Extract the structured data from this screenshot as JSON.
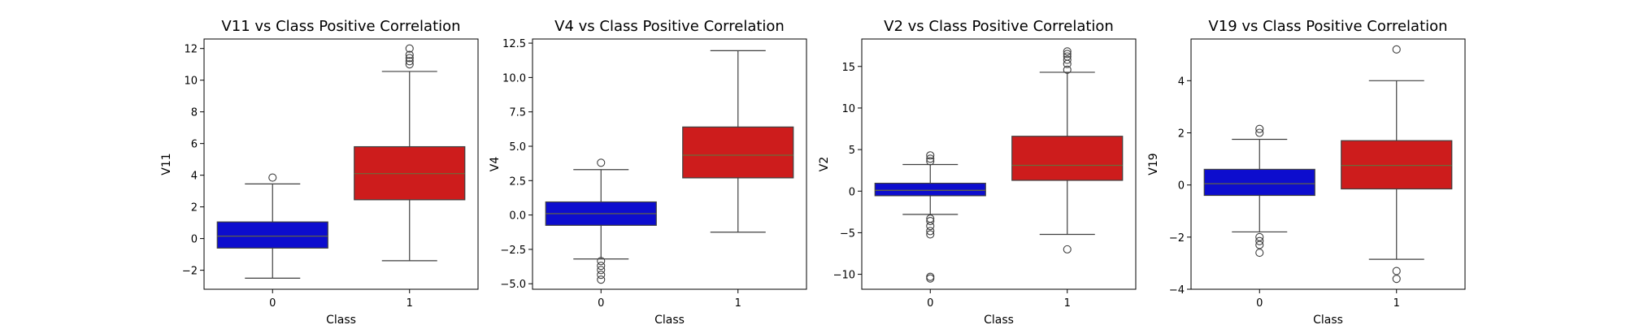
{
  "chart_data": [
    {
      "type": "box",
      "title": "V11 vs Class Positive Correlation",
      "xlabel": "Class",
      "ylabel": "V11",
      "categories": [
        "0",
        "1"
      ],
      "ylim": [
        -3.2,
        12.6
      ],
      "yticks": [
        -2,
        0,
        2,
        4,
        6,
        8,
        10,
        12
      ],
      "ytick_labels": [
        "−2",
        "0",
        "2",
        "4",
        "6",
        "8",
        "10",
        "12"
      ],
      "boxes": [
        {
          "category": "0",
          "color": "#0d0dce",
          "q1": -0.6,
          "median": 0.15,
          "q3": 1.05,
          "whisker_low": -2.5,
          "whisker_high": 3.45,
          "outliers": [
            3.85
          ]
        },
        {
          "category": "1",
          "color": "#cd1c1c",
          "q1": 2.45,
          "median": 4.1,
          "q3": 5.8,
          "whisker_low": -1.4,
          "whisker_high": 10.55,
          "outliers": [
            11.0,
            11.2,
            11.4,
            11.6,
            12.0
          ]
        }
      ]
    },
    {
      "type": "box",
      "title": "V4 vs Class Positive Correlation",
      "xlabel": "Class",
      "ylabel": "V4",
      "categories": [
        "0",
        "1"
      ],
      "ylim": [
        -5.4,
        12.8
      ],
      "yticks": [
        -5.0,
        -2.5,
        0.0,
        2.5,
        5.0,
        7.5,
        10.0,
        12.5
      ],
      "ytick_labels": [
        "−5.0",
        "−2.5",
        "0.0",
        "2.5",
        "5.0",
        "7.5",
        "10.0",
        "12.5"
      ],
      "boxes": [
        {
          "category": "0",
          "color": "#0d0dce",
          "q1": -0.75,
          "median": 0.1,
          "q3": 0.95,
          "whisker_low": -3.2,
          "whisker_high": 3.3,
          "outliers": [
            3.8,
            -3.35,
            -3.7,
            -4.0,
            -4.35,
            -4.7
          ]
        },
        {
          "category": "1",
          "color": "#cd1c1c",
          "q1": 2.7,
          "median": 4.35,
          "q3": 6.4,
          "whisker_low": -1.25,
          "whisker_high": 11.95,
          "outliers": []
        }
      ]
    },
    {
      "type": "box",
      "title": "V2 vs Class Positive Correlation",
      "xlabel": "Class",
      "ylabel": "V2",
      "categories": [
        "0",
        "1"
      ],
      "ylim": [
        -11.8,
        18.3
      ],
      "yticks": [
        -10,
        -5,
        0,
        5,
        10,
        15
      ],
      "ytick_labels": [
        "−10",
        "−5",
        "0",
        "5",
        "10",
        "15"
      ],
      "boxes": [
        {
          "category": "0",
          "color": "#0d0dce",
          "q1": -0.55,
          "median": 0.1,
          "q3": 0.95,
          "whisker_low": -2.8,
          "whisker_high": 3.2,
          "outliers": [
            3.6,
            3.9,
            4.3,
            -3.3,
            -3.6,
            -4.2,
            -4.8,
            -5.2,
            -10.3,
            -10.5
          ]
        },
        {
          "category": "1",
          "color": "#cd1c1c",
          "q1": 1.3,
          "median": 3.1,
          "q3": 6.6,
          "whisker_low": -5.2,
          "whisker_high": 14.3,
          "outliers": [
            14.6,
            15.3,
            15.8,
            16.2,
            16.5,
            16.8,
            -7.0
          ]
        }
      ]
    },
    {
      "type": "box",
      "title": "V19 vs Class Positive Correlation",
      "xlabel": "Class",
      "ylabel": "V19",
      "categories": [
        "0",
        "1"
      ],
      "ylim": [
        -4.0,
        5.6
      ],
      "yticks": [
        -4,
        -2,
        0,
        2,
        4
      ],
      "ytick_labels": [
        "−4",
        "−2",
        "0",
        "2",
        "4"
      ],
      "boxes": [
        {
          "category": "0",
          "color": "#0d0dce",
          "q1": -0.4,
          "median": 0.05,
          "q3": 0.6,
          "whisker_low": -1.8,
          "whisker_high": 1.75,
          "outliers": [
            2.0,
            2.15,
            -2.0,
            -2.15,
            -2.3,
            -2.6
          ]
        },
        {
          "category": "1",
          "color": "#cd1c1c",
          "q1": -0.15,
          "median": 0.75,
          "q3": 1.7,
          "whisker_low": -2.85,
          "whisker_high": 4.0,
          "outliers": [
            5.2,
            -3.3,
            -3.6
          ]
        }
      ]
    }
  ]
}
